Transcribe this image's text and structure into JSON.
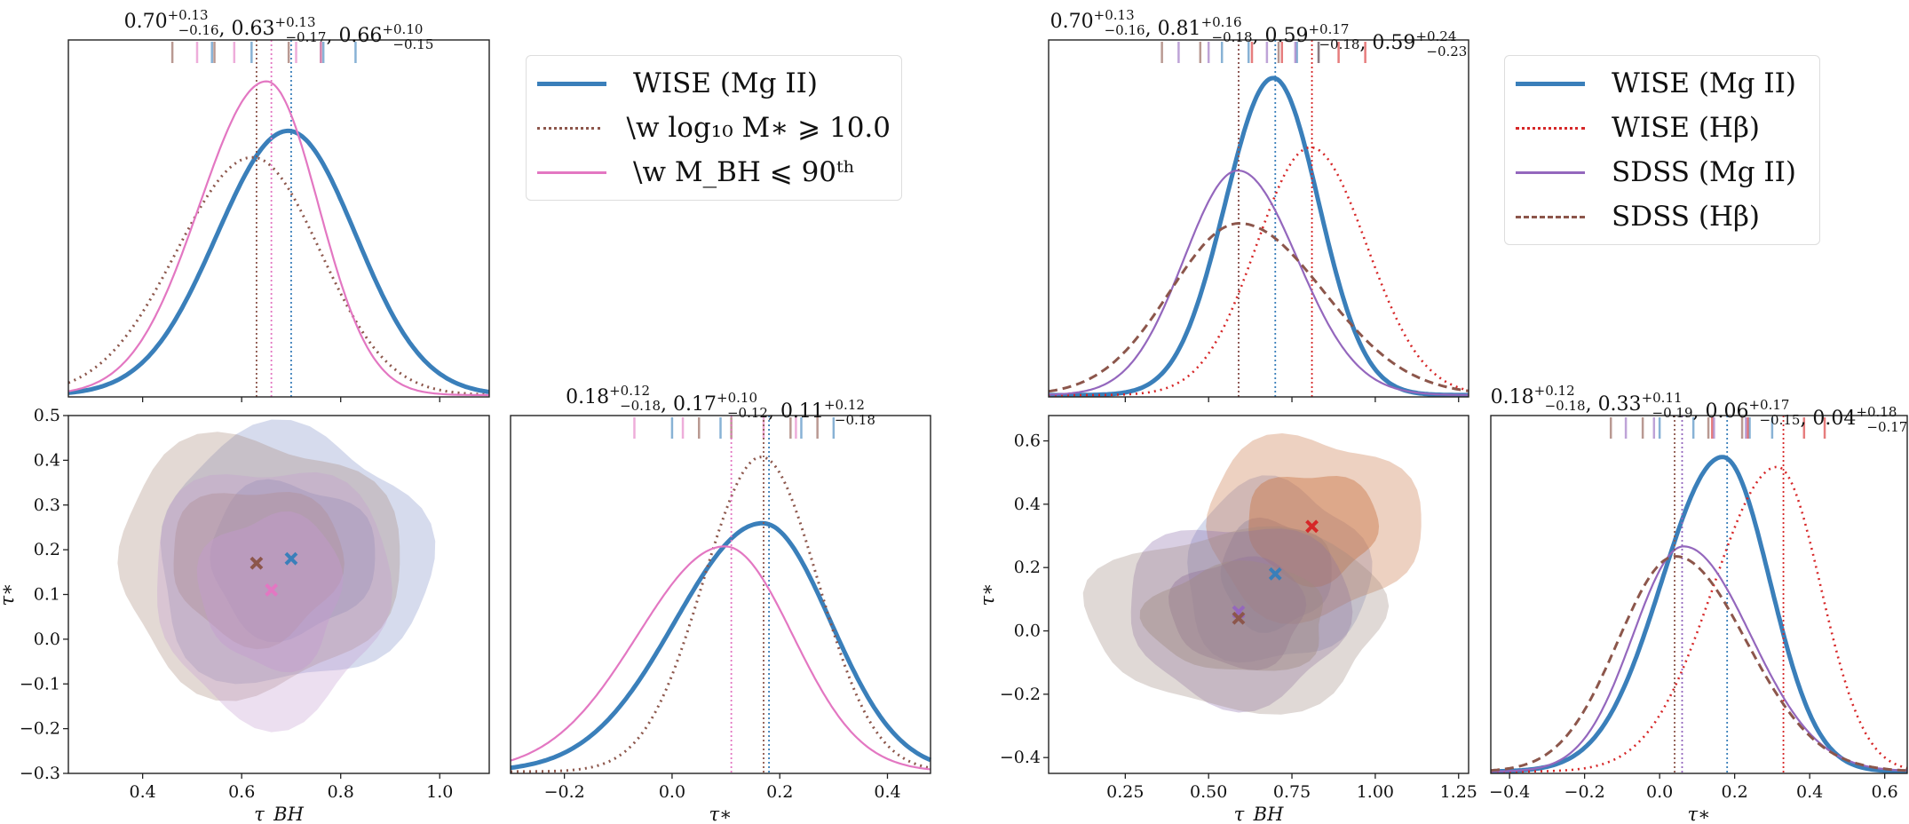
{
  "chart_data": [
    {
      "id": "left",
      "type": "corner",
      "legend": [
        {
          "label": "WISE (Mg II)",
          "color": "#3a7fba",
          "style": "solid-thick"
        },
        {
          "label": "\\w log₁₀ M∗ ⩾ 10.0",
          "color": "#8c564b",
          "style": "dotted"
        },
        {
          "label": "\\w M_BH ⩽ 90ᵗʰ",
          "color": "#e377c2",
          "style": "solid"
        }
      ],
      "legend_position": "top-right",
      "tau_bh_marginal": {
        "title": "0.70(+0.13/−0.16), 0.63(+0.13/−0.17), 0.66(+0.10/−0.15)",
        "xlim": [
          0.25,
          1.1
        ],
        "series": [
          {
            "name": "WISE (Mg II)",
            "median": 0.7,
            "plus": 0.13,
            "minus": 0.16,
            "peak": 0.8
          },
          {
            "name": "\\w log10 M* >= 10.0",
            "median": 0.63,
            "plus": 0.13,
            "minus": 0.17,
            "peak": 0.72
          },
          {
            "name": "\\w M_BH <= 90th",
            "median": 0.66,
            "plus": 0.1,
            "minus": 0.15,
            "peak": 0.95
          }
        ]
      },
      "joint": {
        "xlabel": "τ_BH",
        "ylabel": "τ∗",
        "xlim": [
          0.25,
          1.1
        ],
        "ylim": [
          -0.3,
          0.5
        ],
        "xticks": [
          "0.4",
          "0.6",
          "0.8",
          "1.0"
        ],
        "yticks": [
          "−0.3",
          "−0.2",
          "−0.1",
          "0.0",
          "0.1",
          "0.2",
          "0.3",
          "0.4",
          "0.5"
        ],
        "centers": [
          {
            "name": "WISE (Mg II)",
            "x": 0.7,
            "y": 0.18
          },
          {
            "name": "\\w log10 M* >= 10.0",
            "x": 0.63,
            "y": 0.17
          },
          {
            "name": "\\w M_BH <= 90th",
            "x": 0.66,
            "y": 0.11
          }
        ]
      },
      "tau_star_marginal": {
        "title": "0.18(+0.12/−0.18), 0.17(+0.10/−0.12), 0.11(+0.12/−0.18)",
        "xlabel": "τ∗",
        "xlim": [
          -0.3,
          0.48
        ],
        "xticks": [
          "−0.2",
          "0.0",
          "0.2",
          "0.4"
        ],
        "series": [
          {
            "name": "WISE (Mg II)",
            "median": 0.18,
            "plus": 0.12,
            "minus": 0.18,
            "peak": 0.75
          },
          {
            "name": "\\w log10 M* >= 10.0",
            "median": 0.17,
            "plus": 0.1,
            "minus": 0.12,
            "peak": 0.95
          },
          {
            "name": "\\w M_BH <= 90th",
            "median": 0.11,
            "plus": 0.12,
            "minus": 0.18,
            "peak": 0.68
          }
        ]
      }
    },
    {
      "id": "right",
      "type": "corner",
      "legend": [
        {
          "label": "WISE (Mg II)",
          "color": "#3a7fba",
          "style": "solid-thick"
        },
        {
          "label": "WISE (Hβ)",
          "color": "#d62728",
          "style": "dotted"
        },
        {
          "label": "SDSS (Mg II)",
          "color": "#9467bd",
          "style": "solid"
        },
        {
          "label": "SDSS (Hβ)",
          "color": "#8c564b",
          "style": "dashed"
        }
      ],
      "legend_position": "top-right",
      "tau_bh_marginal": {
        "title": "0.70(+0.13/−0.16), 0.81(+0.16/−0.18), 0.59(+0.17/−0.18), 0.59(+0.24/−0.23)",
        "xlim": [
          0.02,
          1.28
        ],
        "series": [
          {
            "name": "WISE (Mg II)",
            "median": 0.7,
            "plus": 0.13,
            "minus": 0.16,
            "peak": 0.96
          },
          {
            "name": "WISE (Hβ)",
            "median": 0.81,
            "plus": 0.16,
            "minus": 0.18,
            "peak": 0.75
          },
          {
            "name": "SDSS (Mg II)",
            "median": 0.59,
            "plus": 0.17,
            "minus": 0.18,
            "peak": 0.68
          },
          {
            "name": "SDSS (Hβ)",
            "median": 0.59,
            "plus": 0.24,
            "minus": 0.23,
            "peak": 0.52
          }
        ]
      },
      "joint": {
        "xlabel": "τ_BH",
        "ylabel": "τ∗",
        "xlim": [
          0.02,
          1.28
        ],
        "ylim": [
          -0.45,
          0.68
        ],
        "xticks": [
          "0.25",
          "0.50",
          "0.75",
          "1.00",
          "1.25"
        ],
        "yticks": [
          "−0.4",
          "−0.2",
          "0.0",
          "0.2",
          "0.4",
          "0.6"
        ],
        "centers": [
          {
            "name": "WISE (Mg II)",
            "x": 0.7,
            "y": 0.18
          },
          {
            "name": "WISE (Hβ)",
            "x": 0.81,
            "y": 0.33
          },
          {
            "name": "SDSS (Mg II)",
            "x": 0.59,
            "y": 0.06
          },
          {
            "name": "SDSS (Hβ)",
            "x": 0.59,
            "y": 0.04
          }
        ]
      },
      "tau_star_marginal": {
        "title": "0.18(+0.12/−0.18), 0.33(+0.11/−0.19), 0.06(+0.17/−0.15), 0.04(+0.18/−0.17)",
        "xlabel": "τ∗",
        "xlim": [
          -0.45,
          0.66
        ],
        "xticks": [
          "−0.4",
          "−0.2",
          "0.0",
          "0.2",
          "0.4",
          "0.6"
        ],
        "series": [
          {
            "name": "WISE (Mg II)",
            "median": 0.18,
            "plus": 0.12,
            "minus": 0.18,
            "peak": 0.95
          },
          {
            "name": "WISE (Hβ)",
            "median": 0.33,
            "plus": 0.11,
            "minus": 0.19,
            "peak": 0.92
          },
          {
            "name": "SDSS (Mg II)",
            "median": 0.06,
            "plus": 0.17,
            "minus": 0.15,
            "peak": 0.68
          },
          {
            "name": "SDSS (Hβ)",
            "median": 0.04,
            "plus": 0.18,
            "minus": 0.17,
            "peak": 0.65
          }
        ]
      }
    }
  ]
}
